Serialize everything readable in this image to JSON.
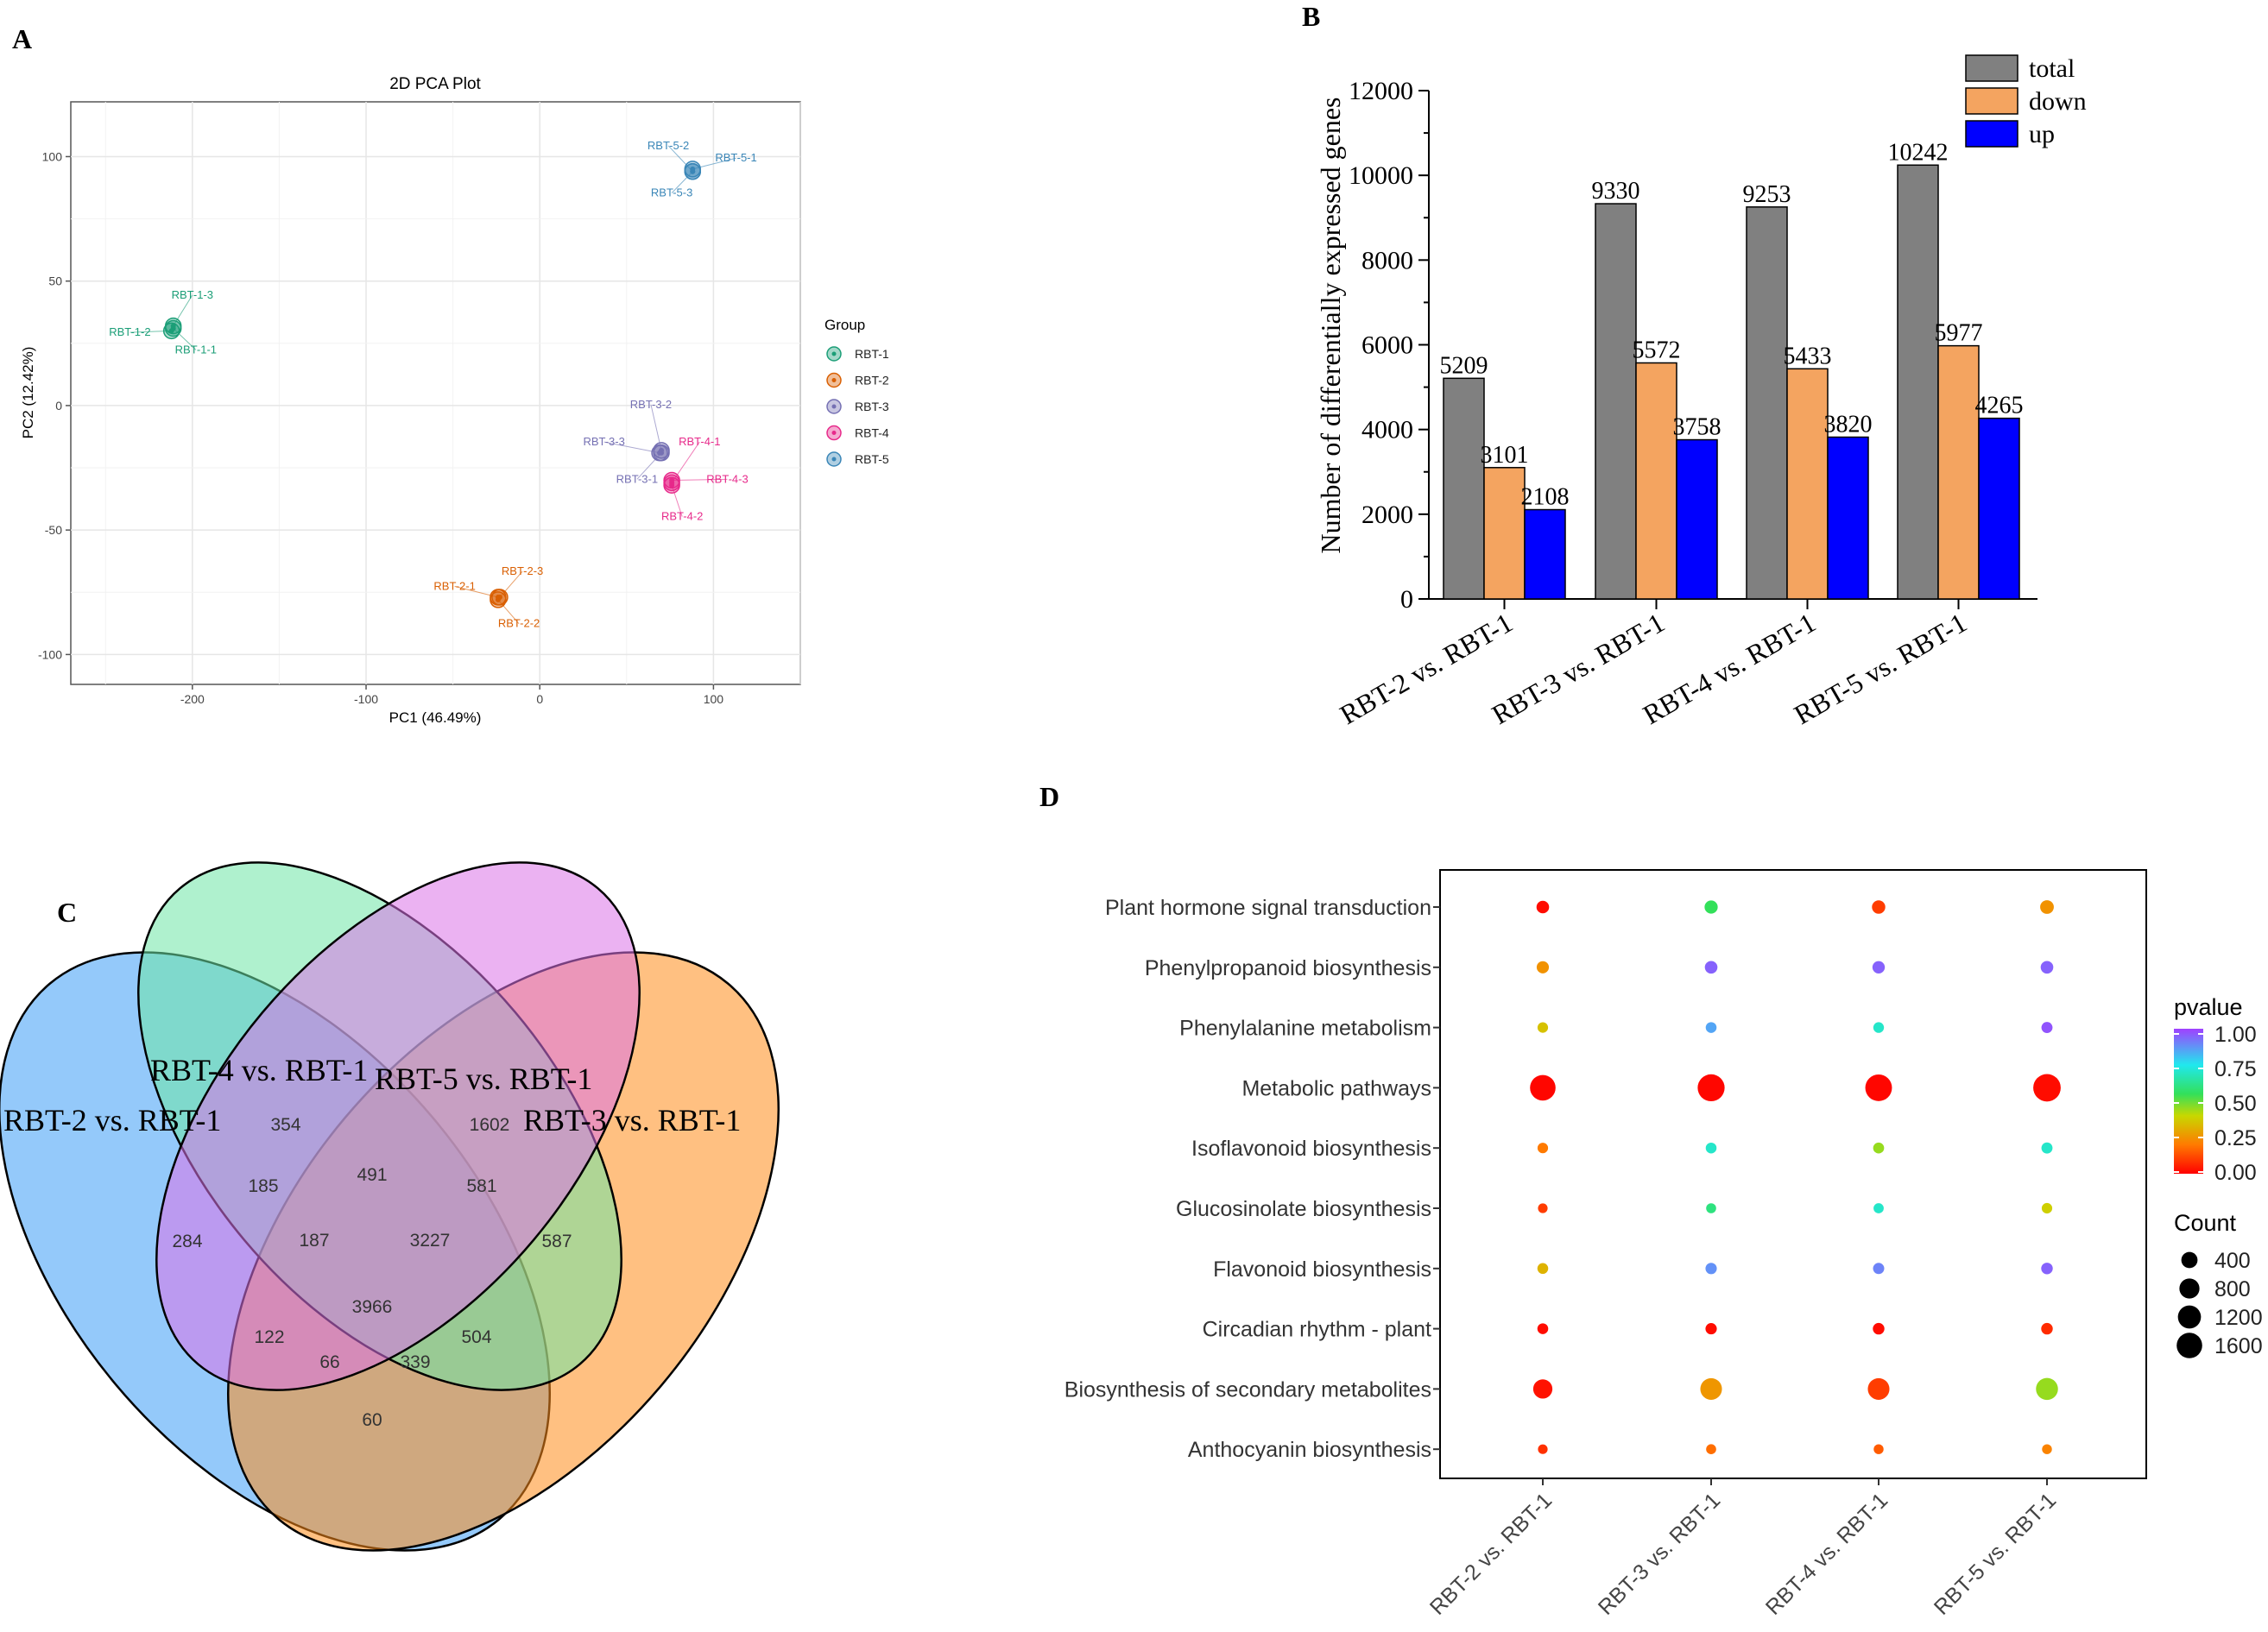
{
  "panels": {
    "A": "A",
    "B": "B",
    "C": "C",
    "D": "D"
  },
  "chart_data": [
    {
      "panel": "A",
      "type": "scatter",
      "title": "2D PCA Plot",
      "xlabel": "PC1 (46.49%)",
      "ylabel": "PC2 (12.42%)",
      "xlim": [
        -270,
        150
      ],
      "ylim": [
        -112,
        122
      ],
      "xticks": [
        -200,
        -100,
        0,
        100
      ],
      "yticks": [
        100,
        50,
        0,
        -50,
        -100
      ],
      "grid": true,
      "legend_title": "Group",
      "groups": [
        {
          "name": "RBT-1",
          "color": "#1b9e77"
        },
        {
          "name": "RBT-2",
          "color": "#d95f02"
        },
        {
          "name": "RBT-3",
          "color": "#7570b3"
        },
        {
          "name": "RBT-4",
          "color": "#e7298a"
        },
        {
          "name": "RBT-5",
          "color": "#3a86b7"
        }
      ],
      "points": [
        {
          "label": "RBT-1-1",
          "group": 0,
          "x": -211,
          "y": 31,
          "lx": -198,
          "ly": 21
        },
        {
          "label": "RBT-1-2",
          "group": 0,
          "x": -212,
          "y": 30,
          "lx": -236,
          "ly": 28
        },
        {
          "label": "RBT-1-3",
          "group": 0,
          "x": -211,
          "y": 32,
          "lx": -200,
          "ly": 43
        },
        {
          "label": "RBT-2-1",
          "group": 1,
          "x": -24,
          "y": -77,
          "lx": -49,
          "ly": -74
        },
        {
          "label": "RBT-2-2",
          "group": 1,
          "x": -24,
          "y": -78,
          "lx": -12,
          "ly": -89
        },
        {
          "label": "RBT-2-3",
          "group": 1,
          "x": -23,
          "y": -77,
          "lx": -10,
          "ly": -68
        },
        {
          "label": "RBT-3-1",
          "group": 2,
          "x": 70,
          "y": -19,
          "lx": 56,
          "ly": -31
        },
        {
          "label": "RBT-3-2",
          "group": 2,
          "x": 70,
          "y": -18,
          "lx": 64,
          "ly": -1
        },
        {
          "label": "RBT-3-3",
          "group": 2,
          "x": 69,
          "y": -19,
          "lx": 37,
          "ly": -16
        },
        {
          "label": "RBT-4-1",
          "group": 3,
          "x": 76,
          "y": -31,
          "lx": 92,
          "ly": -16
        },
        {
          "label": "RBT-4-2",
          "group": 3,
          "x": 76,
          "y": -32,
          "lx": 82,
          "ly": -46
        },
        {
          "label": "RBT-4-3",
          "group": 3,
          "x": 76,
          "y": -30,
          "lx": 108,
          "ly": -31
        },
        {
          "label": "RBT-5-1",
          "group": 4,
          "x": 88,
          "y": 95,
          "lx": 113,
          "ly": 98
        },
        {
          "label": "RBT-5-2",
          "group": 4,
          "x": 88,
          "y": 94,
          "lx": 74,
          "ly": 103
        },
        {
          "label": "RBT-5-3",
          "group": 4,
          "x": 88,
          "y": 94,
          "lx": 76,
          "ly": 84
        }
      ]
    },
    {
      "panel": "B",
      "type": "bar",
      "ylabel": "Number of differentially expressed genes",
      "ylim": [
        0,
        12000
      ],
      "yticks": [
        0,
        2000,
        4000,
        6000,
        8000,
        10000,
        12000
      ],
      "categories": [
        "RBT-2 vs. RBT-1",
        "RBT-3 vs. RBT-1",
        "RBT-4 vs. RBT-1",
        "RBT-5 vs. RBT-1"
      ],
      "series": [
        {
          "name": "total",
          "color": "#808080",
          "values": [
            5209,
            9330,
            9253,
            10242
          ]
        },
        {
          "name": "down",
          "color": "#f4a460",
          "values": [
            3101,
            5572,
            5433,
            5977
          ]
        },
        {
          "name": "up",
          "color": "#0000ff",
          "values": [
            2108,
            3758,
            3820,
            4265
          ]
        }
      ]
    },
    {
      "panel": "C",
      "type": "venn",
      "sets": [
        {
          "name": "RBT-2 vs. RBT-1",
          "color": "#3d9cf5"
        },
        {
          "name": "RBT-4 vs. RBT-1",
          "color": "#6ee5a6"
        },
        {
          "name": "RBT-5 vs. RBT-1",
          "color": "#db73e8"
        },
        {
          "name": "RBT-3 vs. RBT-1",
          "color": "#ff8c1a"
        }
      ],
      "regions": [
        {
          "value": "354"
        },
        {
          "value": "1602"
        },
        {
          "value": "185"
        },
        {
          "value": "491"
        },
        {
          "value": "581"
        },
        {
          "value": "284"
        },
        {
          "value": "187"
        },
        {
          "value": "3227"
        },
        {
          "value": "587"
        },
        {
          "value": "3966"
        },
        {
          "value": "122"
        },
        {
          "value": "504"
        },
        {
          "value": "66"
        },
        {
          "value": "339"
        },
        {
          "value": "60"
        }
      ]
    },
    {
      "panel": "D",
      "type": "dotplot",
      "x_categories": [
        "RBT-2 vs. RBT-1",
        "RBT-3 vs. RBT-1",
        "RBT-4 vs. RBT-1",
        "RBT-5 vs. RBT-1"
      ],
      "y_categories": [
        "Plant hormone signal transduction",
        "Phenylpropanoid biosynthesis",
        "Phenylalanine metabolism",
        "Metabolic pathways",
        "Isoflavonoid biosynthesis",
        "Glucosinolate biosynthesis",
        "Flavonoid biosynthesis",
        "Circadian rhythm - plant",
        "Biosynthesis of secondary metabolites",
        "Anthocyanin biosynthesis"
      ],
      "pvalue": [
        [
          0.02,
          0.55,
          0.1,
          0.25
        ],
        [
          0.25,
          0.95,
          0.95,
          0.95
        ],
        [
          0.35,
          0.85,
          0.7,
          0.97
        ],
        [
          0.01,
          0.01,
          0.01,
          0.02
        ],
        [
          0.2,
          0.7,
          0.45,
          0.7
        ],
        [
          0.1,
          0.6,
          0.7,
          0.38
        ],
        [
          0.32,
          0.88,
          0.9,
          0.95
        ],
        [
          0.02,
          0.02,
          0.02,
          0.07
        ],
        [
          0.03,
          0.26,
          0.1,
          0.45
        ],
        [
          0.08,
          0.18,
          0.15,
          0.22
        ]
      ],
      "count": [
        [
          150,
          180,
          190,
          210
        ],
        [
          130,
          150,
          140,
          150
        ],
        [
          60,
          70,
          65,
          80
        ],
        [
          1600,
          1850,
          1800,
          1950
        ],
        [
          60,
          70,
          75,
          80
        ],
        [
          35,
          45,
          50,
          60
        ],
        [
          70,
          90,
          85,
          100
        ],
        [
          70,
          90,
          100,
          100
        ],
        [
          700,
          1000,
          1000,
          1050
        ],
        [
          35,
          45,
          40,
          40
        ]
      ],
      "legend": {
        "pvalue_title": "pvalue",
        "pvalue_ticks": [
          "1.00",
          "0.75",
          "0.50",
          "0.25",
          "0.00"
        ],
        "count_title": "Count",
        "count_ticks": [
          "400",
          "800",
          "1200",
          "1600"
        ]
      }
    }
  ]
}
